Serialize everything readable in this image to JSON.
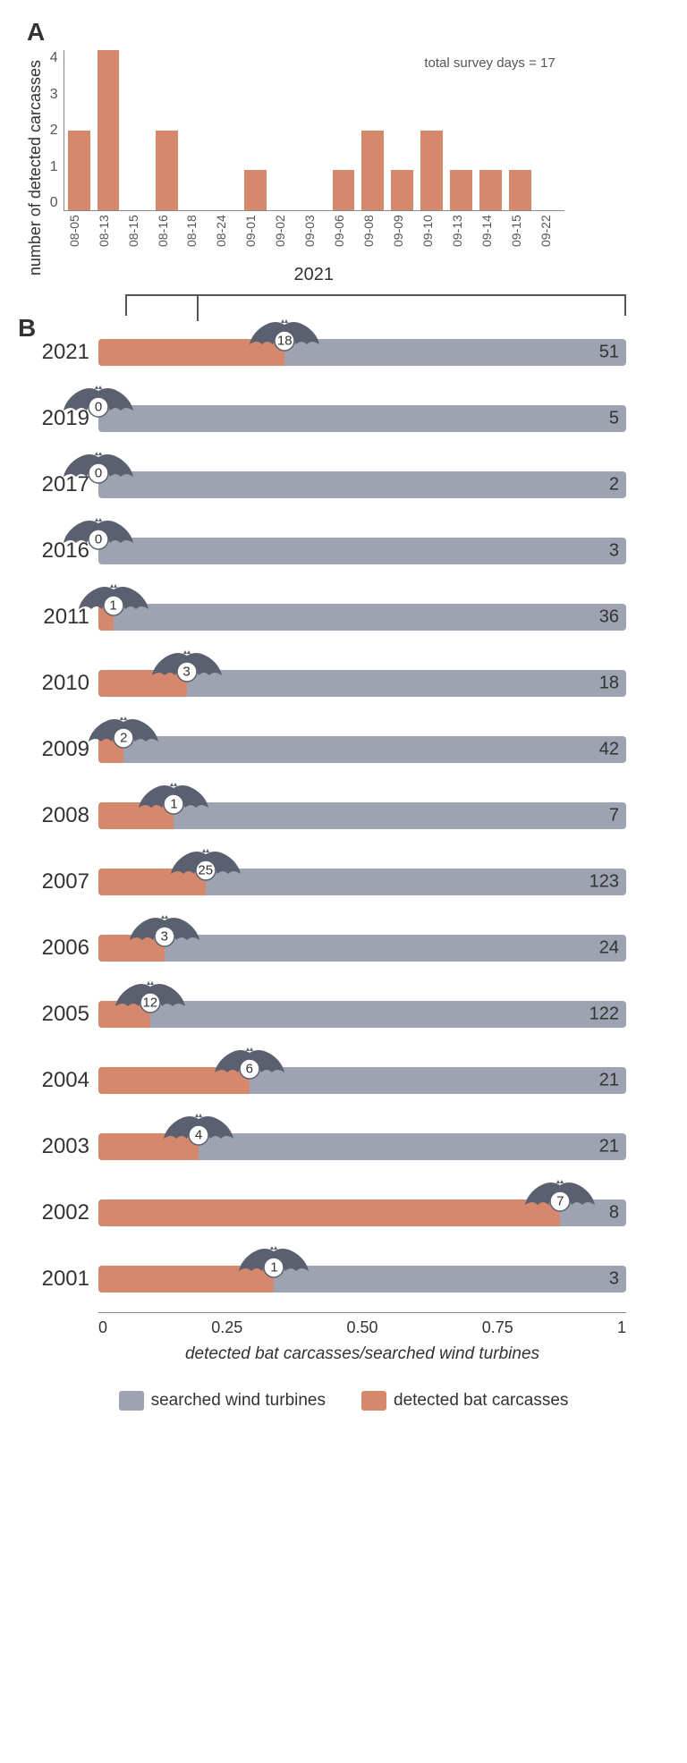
{
  "colors": {
    "orange": "#d6886d",
    "gray": "#9da3b0",
    "axis": "#888888",
    "text": "#333333",
    "bat": "#5a6070"
  },
  "panelA": {
    "label": "A",
    "y_label": "number of\ndetected carcasses",
    "x_label": "2021",
    "survey_note": "total survey days = 17",
    "y_max": 4,
    "y_ticks": [
      "4",
      "3",
      "2",
      "1",
      "0"
    ],
    "bars": [
      {
        "date": "08-05",
        "value": 2
      },
      {
        "date": "08-13",
        "value": 4
      },
      {
        "date": "08-15",
        "value": 0
      },
      {
        "date": "08-16",
        "value": 2
      },
      {
        "date": "08-18",
        "value": 0
      },
      {
        "date": "08-24",
        "value": 0
      },
      {
        "date": "09-01",
        "value": 1
      },
      {
        "date": "09-02",
        "value": 0
      },
      {
        "date": "09-03",
        "value": 0
      },
      {
        "date": "09-06",
        "value": 1
      },
      {
        "date": "09-08",
        "value": 2
      },
      {
        "date": "09-09",
        "value": 1
      },
      {
        "date": "09-10",
        "value": 2
      },
      {
        "date": "09-13",
        "value": 1
      },
      {
        "date": "09-14",
        "value": 1
      },
      {
        "date": "09-15",
        "value": 1
      },
      {
        "date": "09-22",
        "value": 0
      }
    ]
  },
  "panelB": {
    "label": "B",
    "x_label": "detected bat carcasses/searched wind turbines",
    "x_ticks": [
      "0",
      "0.25",
      "0.50",
      "0.75",
      "1"
    ],
    "x_max": 1,
    "rows": [
      {
        "year": "2021",
        "carcasses": 18,
        "turbines": 51,
        "ratio": 0.353
      },
      {
        "year": "2019",
        "carcasses": 0,
        "turbines": 5,
        "ratio": 0.0
      },
      {
        "year": "2017",
        "carcasses": 0,
        "turbines": 2,
        "ratio": 0.0
      },
      {
        "year": "2016",
        "carcasses": 0,
        "turbines": 3,
        "ratio": 0.0
      },
      {
        "year": "2011",
        "carcasses": 1,
        "turbines": 36,
        "ratio": 0.028
      },
      {
        "year": "2010",
        "carcasses": 3,
        "turbines": 18,
        "ratio": 0.167
      },
      {
        "year": "2009",
        "carcasses": 2,
        "turbines": 42,
        "ratio": 0.048
      },
      {
        "year": "2008",
        "carcasses": 1,
        "turbines": 7,
        "ratio": 0.143
      },
      {
        "year": "2007",
        "carcasses": 25,
        "turbines": 123,
        "ratio": 0.203
      },
      {
        "year": "2006",
        "carcasses": 3,
        "turbines": 24,
        "ratio": 0.125
      },
      {
        "year": "2005",
        "carcasses": 12,
        "turbines": 122,
        "ratio": 0.098
      },
      {
        "year": "2004",
        "carcasses": 6,
        "turbines": 21,
        "ratio": 0.286
      },
      {
        "year": "2003",
        "carcasses": 4,
        "turbines": 21,
        "ratio": 0.19
      },
      {
        "year": "2002",
        "carcasses": 7,
        "turbines": 8,
        "ratio": 0.875
      },
      {
        "year": "2001",
        "carcasses": 1,
        "turbines": 3,
        "ratio": 0.333
      }
    ]
  },
  "legend": {
    "gray_label": "searched wind turbines",
    "orange_label": "detected bat carcasses"
  }
}
